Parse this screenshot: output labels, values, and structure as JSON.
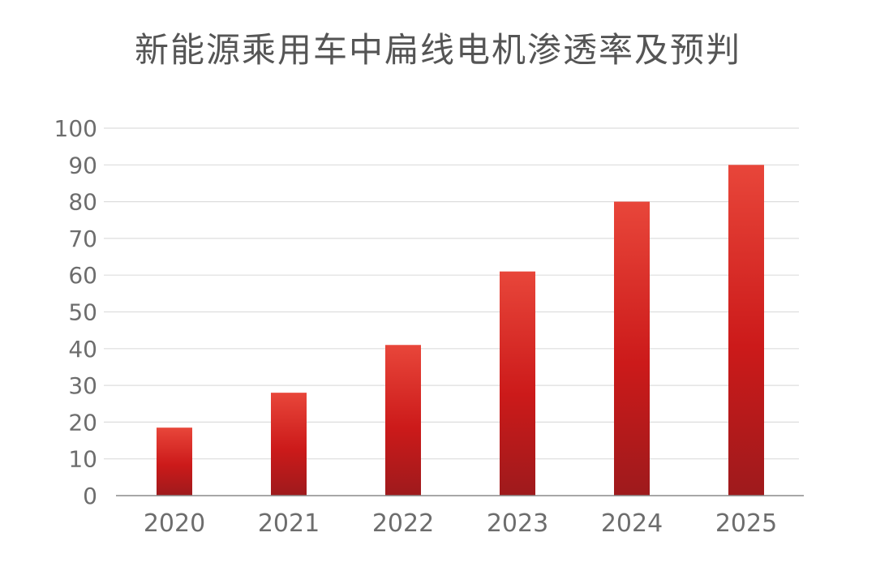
{
  "chart_data": {
    "type": "bar",
    "title": "新能源乘用车中扁线电机渗透率及预判",
    "categories": [
      "2020",
      "2021",
      "2022",
      "2023",
      "2024",
      "2025"
    ],
    "values": [
      18.5,
      28,
      41,
      61,
      80,
      90
    ],
    "ylim": [
      0,
      100
    ],
    "yticks": [
      0,
      10,
      20,
      30,
      40,
      50,
      60,
      70,
      80,
      90,
      100
    ],
    "grid": true,
    "legend": "none",
    "bar_color_top": "#e8463a",
    "bar_color_mid": "#cc1a1a",
    "bar_color_bottom": "#9e1a1c",
    "axis_color": "#8a8a8a",
    "grid_color": "#dddddd"
  }
}
